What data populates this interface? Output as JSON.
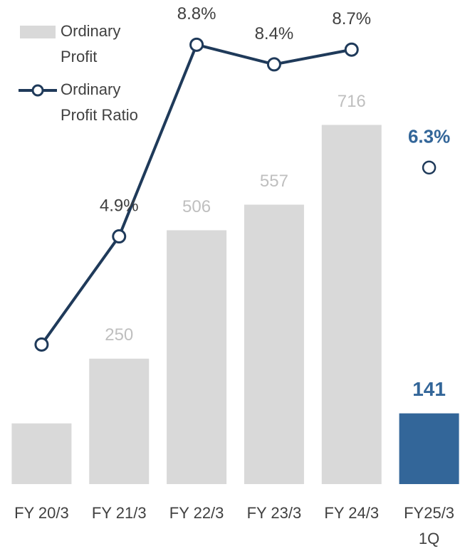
{
  "chart_data": {
    "type": "bar",
    "categories": [
      "FY 20/3",
      "FY 21/3",
      "FY 22/3",
      "FY 23/3",
      "FY 24/3",
      "FY25/3\n1Q"
    ],
    "series": [
      {
        "name": "Ordinary\nProfit",
        "type": "bar",
        "color": "#d9d9d9",
        "values": [
          121,
          250,
          506,
          557,
          716,
          141
        ],
        "value_labels": [
          null,
          "250",
          "506",
          "557",
          "716",
          "141"
        ]
      },
      {
        "name": "Ordinary\nProfit Ratio",
        "type": "line",
        "axis": "y2",
        "color": "#1f3a5a",
        "values": [
          2.7,
          4.9,
          8.8,
          8.4,
          8.7,
          6.3
        ],
        "value_labels": [
          null,
          "4.9%",
          "8.8%",
          "8.4%",
          "8.7%",
          "6.3%"
        ]
      }
    ],
    "ylim": [
      0,
      965
    ],
    "y2lim": [
      -0.14,
      9.71
    ],
    "highlight": {
      "index": 5,
      "color": "#336699"
    },
    "legend": "top-left",
    "grid": false
  }
}
